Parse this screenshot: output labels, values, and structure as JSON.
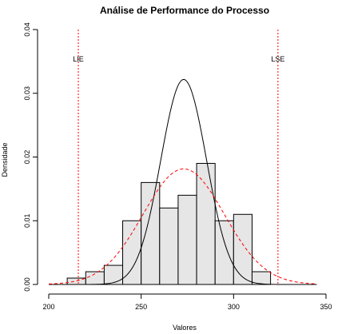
{
  "chart_data": {
    "type": "histogram",
    "title": "Análise de Performance do Processo",
    "xlabel": "Valores",
    "ylabel": "Densidade",
    "xlim": [
      200,
      350
    ],
    "ylim": [
      0,
      0.04
    ],
    "x_ticks": [
      200,
      250,
      300,
      350
    ],
    "y_ticks": [
      0.0,
      0.01,
      0.02,
      0.03,
      0.04
    ],
    "x_tick_labels": [
      "200",
      "250",
      "300",
      "350"
    ],
    "y_tick_labels": [
      "0.00",
      "0.01",
      "0.02",
      "0.03",
      "0.04"
    ],
    "bin_width": 10,
    "bins": [
      {
        "start": 210,
        "end": 220,
        "density": 0.001
      },
      {
        "start": 220,
        "end": 230,
        "density": 0.002
      },
      {
        "start": 230,
        "end": 240,
        "density": 0.003
      },
      {
        "start": 240,
        "end": 250,
        "density": 0.01
      },
      {
        "start": 250,
        "end": 260,
        "density": 0.016
      },
      {
        "start": 260,
        "end": 270,
        "density": 0.012
      },
      {
        "start": 270,
        "end": 280,
        "density": 0.014
      },
      {
        "start": 280,
        "end": 290,
        "density": 0.019
      },
      {
        "start": 290,
        "end": 300,
        "density": 0.01
      },
      {
        "start": 300,
        "end": 310,
        "density": 0.011
      },
      {
        "start": 310,
        "end": 320,
        "density": 0.002
      }
    ],
    "curves": [
      {
        "style": "solid",
        "color": "#000000",
        "mean": 273,
        "sd": 12.4
      },
      {
        "style": "dashed",
        "color": "#ff0000",
        "mean": 273,
        "sd": 22
      }
    ],
    "spec_limits": [
      {
        "label": "LIE",
        "x": 216,
        "color": "#ff0000"
      },
      {
        "label": "LSE",
        "x": 324,
        "color": "#ff0000"
      }
    ],
    "colors": {
      "bar_fill": "#e6e6e6",
      "bar_stroke": "#000000",
      "background": "#ffffff"
    }
  }
}
